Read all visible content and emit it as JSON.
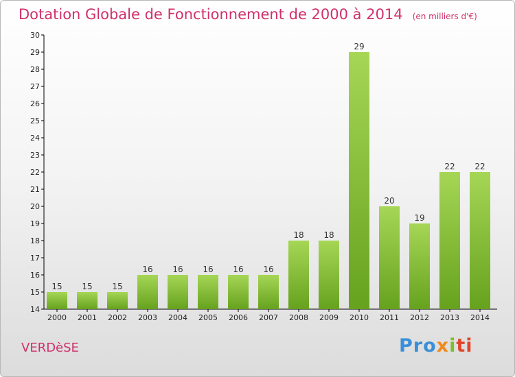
{
  "title": "Dotation Globale de Fonctionnement de 2000 à 2014",
  "unit_note": "(en milliers d'€)",
  "commune": "VERDèSE",
  "brand": {
    "text": "Proxiti",
    "parts": [
      "Pro",
      "x",
      "i",
      "ti"
    ]
  },
  "colors": {
    "title": "#d0306a",
    "bar_light": "#a6d656",
    "bar_dark": "#66a21e",
    "axis": "#000000"
  },
  "chart_data": {
    "type": "bar",
    "title": "Dotation Globale de Fonctionnement de 2000 à 2014",
    "xlabel": "",
    "ylabel": "",
    "categories": [
      "2000",
      "2001",
      "2002",
      "2003",
      "2004",
      "2005",
      "2006",
      "2007",
      "2008",
      "2009",
      "2010",
      "2011",
      "2012",
      "2013",
      "2014"
    ],
    "values": [
      15,
      15,
      15,
      16,
      16,
      16,
      16,
      16,
      18,
      18,
      29,
      20,
      19,
      22,
      22
    ],
    "ylim": [
      14,
      30
    ],
    "yticks": [
      14,
      15,
      16,
      17,
      18,
      19,
      20,
      21,
      22,
      23,
      24,
      25,
      26,
      27,
      28,
      29,
      30
    ],
    "grid": false,
    "legend": "none"
  }
}
